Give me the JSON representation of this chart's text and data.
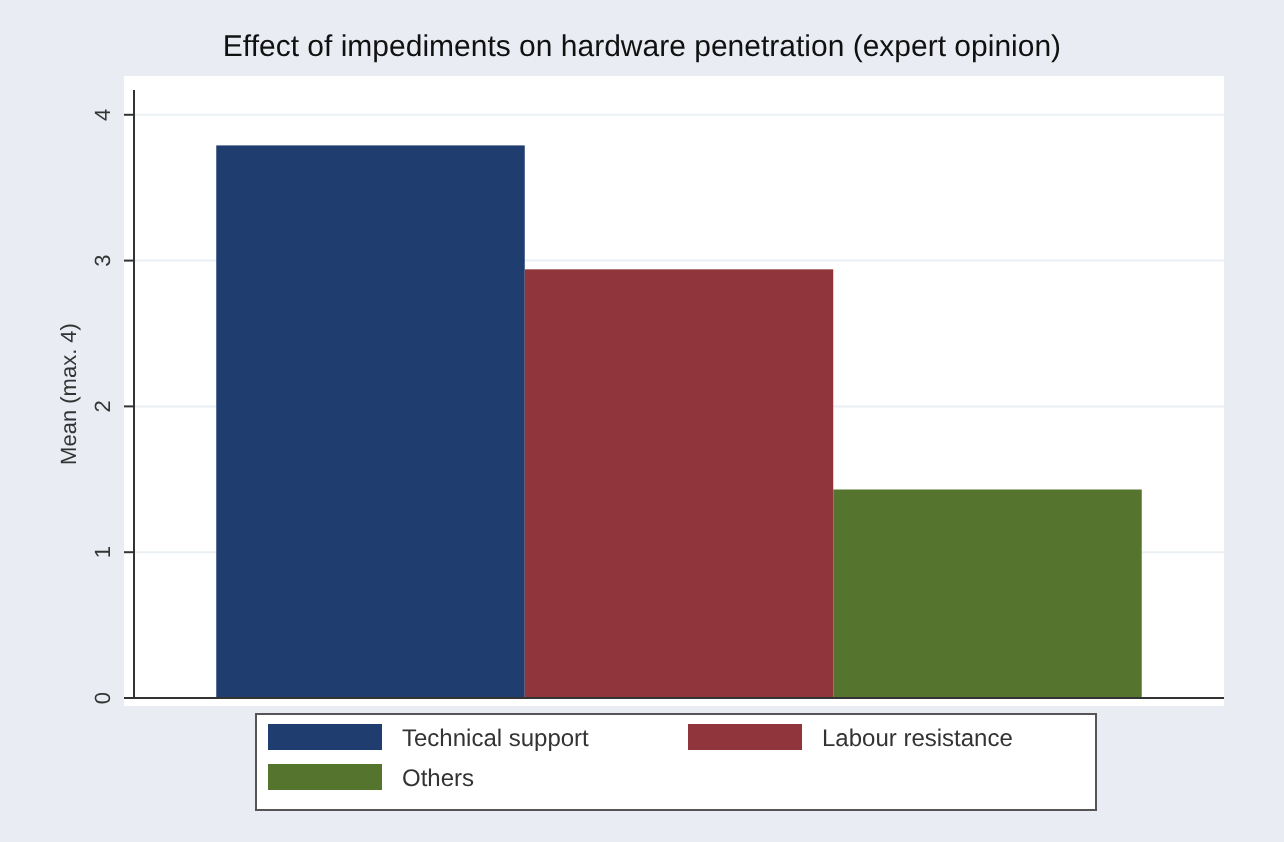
{
  "chart_data": {
    "type": "bar",
    "title": "Effect of impediments on hardware penetration (expert opinion)",
    "ylabel": "Mean (max. 4)",
    "categories": [
      null
    ],
    "series": [
      {
        "name": "Technical support",
        "color": "#1f3d6e",
        "values": [
          3.79
        ]
      },
      {
        "name": "Labour resistance",
        "color": "#90353b",
        "values": [
          2.94
        ]
      },
      {
        "name": "Others",
        "color": "#55752f",
        "values": [
          1.43
        ]
      }
    ],
    "ylim": [
      0,
      4.17
    ],
    "yticks": [
      0,
      1,
      2,
      3,
      4
    ],
    "grid": "y",
    "legend": "bottom"
  }
}
